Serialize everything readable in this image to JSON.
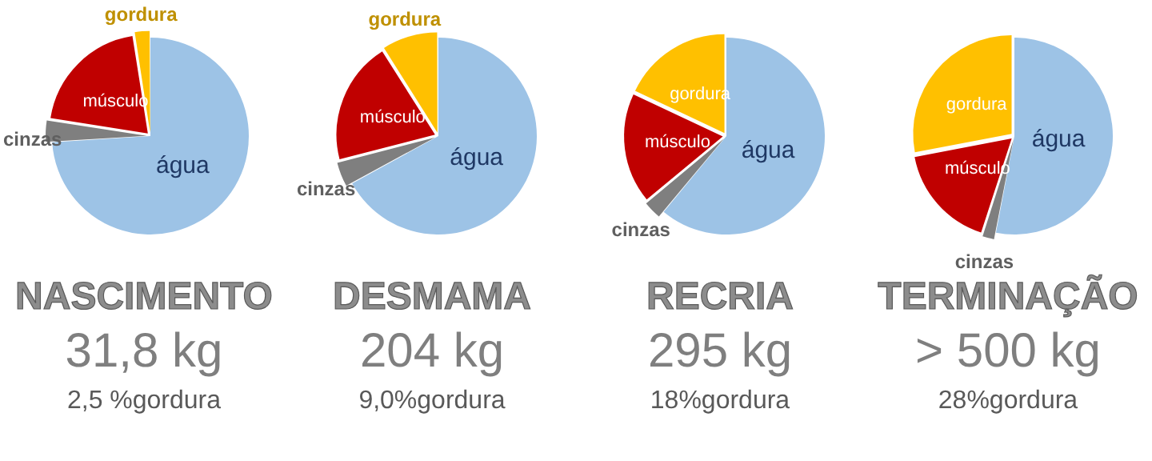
{
  "chart_data": [
    {
      "type": "pie",
      "title": "NASCIMENTO",
      "subtitle": "31,8 kg",
      "annotations": [
        "2,5 %gordura"
      ],
      "categories": [
        "água",
        "cinzas",
        "músculo",
        "gordura"
      ],
      "values": [
        74,
        3.5,
        20,
        2.5
      ],
      "colors": [
        "#9dc3e6",
        "#7f7f7f",
        "#c00000",
        "#ffc000"
      ],
      "legend": false
    },
    {
      "type": "pie",
      "title": "DESMAMA",
      "subtitle": "204 kg",
      "annotations": [
        "9,0%gordura"
      ],
      "categories": [
        "água",
        "cinzas",
        "músculo",
        "gordura"
      ],
      "values": [
        67,
        4,
        20,
        9
      ],
      "colors": [
        "#9dc3e6",
        "#7f7f7f",
        "#c00000",
        "#ffc000"
      ],
      "legend": false
    },
    {
      "type": "pie",
      "title": "RECRIA",
      "subtitle": "295 kg",
      "annotations": [
        "18%gordura"
      ],
      "categories": [
        "água",
        "cinzas",
        "músculo",
        "gordura"
      ],
      "values": [
        61,
        3,
        18,
        18
      ],
      "colors": [
        "#9dc3e6",
        "#7f7f7f",
        "#c00000",
        "#ffc000"
      ],
      "legend": false
    },
    {
      "type": "pie",
      "title": "TERMINAÇÃO",
      "subtitle": "> 500 kg",
      "annotations": [
        "28%gordura"
      ],
      "categories": [
        "água",
        "cinzas",
        "músculo",
        "gordura"
      ],
      "values": [
        53,
        2,
        17,
        28
      ],
      "colors": [
        "#9dc3e6",
        "#7f7f7f",
        "#c00000",
        "#ffc000"
      ],
      "legend": false
    }
  ]
}
